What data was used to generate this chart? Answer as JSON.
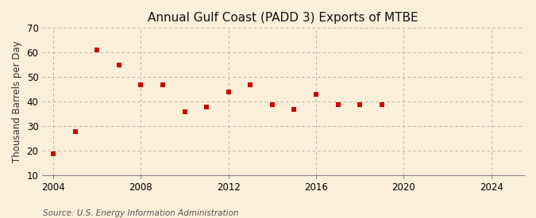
{
  "title": "Annual Gulf Coast (PADD 3) Exports of MTBE",
  "ylabel": "Thousand Barrels per Day",
  "source_text": "Source: U.S. Energy Information Administration",
  "background_color": "#faefd8",
  "plot_background_color": "#faefd8",
  "marker_color": "#cc0000",
  "marker": "s",
  "marker_size": 4,
  "years": [
    2004,
    2005,
    2006,
    2007,
    2008,
    2009,
    2010,
    2011,
    2012,
    2013,
    2014,
    2015,
    2016,
    2017,
    2018,
    2019
  ],
  "values": [
    19,
    28,
    61,
    55,
    47,
    47,
    36,
    38,
    44,
    47,
    39,
    37,
    43,
    39,
    39,
    39
  ],
  "xlim": [
    2003.5,
    2025.5
  ],
  "ylim": [
    10,
    70
  ],
  "yticks": [
    10,
    20,
    30,
    40,
    50,
    60,
    70
  ],
  "xticks": [
    2004,
    2008,
    2012,
    2016,
    2020,
    2024
  ],
  "grid_color": "#aaaaaa",
  "grid_style": "--",
  "title_fontsize": 11,
  "label_fontsize": 8.5,
  "tick_fontsize": 8.5,
  "source_fontsize": 7.5
}
